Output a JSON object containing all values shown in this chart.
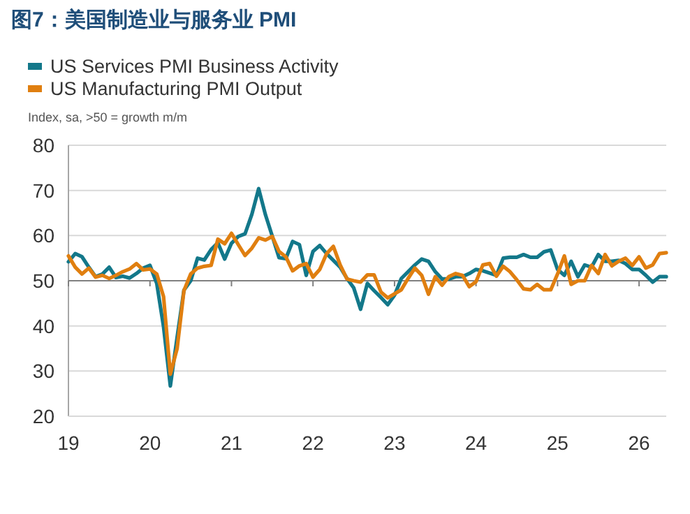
{
  "chart_data": {
    "type": "line",
    "title": "图7：美国制造业与服务业 PMI",
    "subtitle": "Index, sa, >50 = growth m/m",
    "x": [
      "2019-01",
      "2019-02",
      "2019-03",
      "2019-04",
      "2019-05",
      "2019-06",
      "2019-07",
      "2019-08",
      "2019-09",
      "2019-10",
      "2019-11",
      "2019-12",
      "2020-01",
      "2020-02",
      "2020-03",
      "2020-04",
      "2020-05",
      "2020-06",
      "2020-07",
      "2020-08",
      "2020-09",
      "2020-10",
      "2020-11",
      "2020-12",
      "2021-01",
      "2021-02",
      "2021-03",
      "2021-04",
      "2021-05",
      "2021-06",
      "2021-07",
      "2021-08",
      "2021-09",
      "2021-10",
      "2021-11",
      "2021-12",
      "2022-01",
      "2022-02",
      "2022-03",
      "2022-04",
      "2022-05",
      "2022-06",
      "2022-07",
      "2022-08",
      "2022-09",
      "2022-10",
      "2022-11",
      "2022-12",
      "2023-01",
      "2023-02",
      "2023-03",
      "2023-04",
      "2023-05",
      "2023-06",
      "2023-07",
      "2023-08",
      "2023-09",
      "2023-10",
      "2023-11",
      "2023-12",
      "2024-01",
      "2024-02",
      "2024-03",
      "2024-04",
      "2024-05",
      "2024-06",
      "2024-07",
      "2024-08",
      "2024-09",
      "2024-10",
      "2024-11",
      "2024-12",
      "2025-01",
      "2025-02",
      "2025-03",
      "2025-04",
      "2025-05",
      "2025-06",
      "2025-07",
      "2025-08",
      "2025-09",
      "2025-10",
      "2025-11",
      "2025-12",
      "2026-01",
      "2026-02",
      "2026-03",
      "2026-04",
      "2026-05"
    ],
    "xlim": [
      "2019-01",
      "2026-05"
    ],
    "xticks": [
      {
        "value": "2019-01",
        "label": "19"
      },
      {
        "value": "2020-01",
        "label": "20"
      },
      {
        "value": "2021-01",
        "label": "21"
      },
      {
        "value": "2022-01",
        "label": "22"
      },
      {
        "value": "2023-01",
        "label": "23"
      },
      {
        "value": "2024-01",
        "label": "24"
      },
      {
        "value": "2025-01",
        "label": "25"
      },
      {
        "value": "2026-01",
        "label": "26"
      }
    ],
    "ylim": [
      20,
      80
    ],
    "yticks": [
      20,
      30,
      40,
      50,
      60,
      70,
      80
    ],
    "grid": "y",
    "legend": "top left",
    "marker": "none",
    "line_style": "solid",
    "ref_lines": [
      {
        "axis": "y",
        "value": 50,
        "color": "#808080"
      }
    ],
    "series": [
      {
        "name": "US Services PMI Business Activity",
        "color": "#13788a",
        "values": [
          54.2,
          56,
          55.3,
          53,
          50.9,
          51.5,
          53,
          50.7,
          51,
          50.6,
          51.6,
          52.8,
          53.4,
          49.4,
          39.8,
          26.7,
          37.5,
          47.9,
          50,
          55,
          54.6,
          56.9,
          58.4,
          54.8,
          58.3,
          59.8,
          60.4,
          64.7,
          70.4,
          64.6,
          59.9,
          55.1,
          54.9,
          58.7,
          58,
          51.2,
          56.5,
          57.8,
          56,
          54.5,
          53,
          50.5,
          48.4,
          43.7,
          49.4,
          47.8,
          46.3,
          44.7,
          46.8,
          50.5,
          52,
          53.5,
          54.8,
          54.3,
          52,
          50.4,
          50.4,
          50.9,
          50.9,
          51.6,
          52.5,
          52.2,
          51.7,
          51.2,
          55,
          55.2,
          55.2,
          55.8,
          55.2,
          55.2,
          56.4,
          56.8,
          52.5,
          51.2,
          54.3,
          50.9,
          53.5,
          53,
          55.8,
          54.3,
          54.3,
          54.5,
          53.8,
          52.5,
          52.5,
          51.2,
          49.7,
          50.9,
          50.9
        ]
      },
      {
        "name": "US Manufacturing PMI Output",
        "color": "#e07f10",
        "values": [
          55.5,
          53,
          51.5,
          52.8,
          50.8,
          51.2,
          50.5,
          51.2,
          52,
          52.6,
          53.8,
          52.4,
          52.6,
          51.5,
          46.5,
          29.3,
          35,
          47.8,
          51.5,
          52.8,
          53.2,
          53.4,
          59.2,
          58.2,
          60.5,
          58,
          55.6,
          57.2,
          59.5,
          59,
          59.8,
          56.5,
          55.3,
          52.2,
          53.3,
          53.8,
          50.8,
          52.5,
          56,
          57.6,
          53.5,
          50.4,
          50,
          49.7,
          51.3,
          51.3,
          47.5,
          46.2,
          47.1,
          48,
          50.5,
          52.8,
          51.2,
          47,
          50.9,
          49,
          50.9,
          51.6,
          51.2,
          48.7,
          49.8,
          53.5,
          53.8,
          51,
          53.2,
          52,
          50.2,
          48.2,
          48,
          49.2,
          48,
          48,
          51.5,
          55.5,
          49.2,
          50,
          50,
          53.4,
          51.6,
          55.8,
          53.3,
          54.3,
          55,
          53.4,
          55.3,
          52.8,
          53.5,
          56,
          56.2
        ]
      }
    ]
  }
}
